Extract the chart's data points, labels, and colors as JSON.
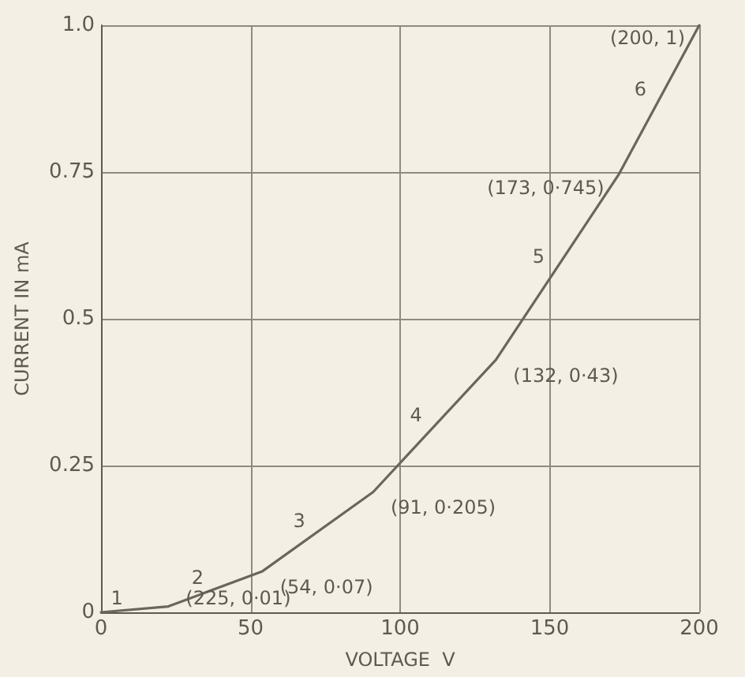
{
  "chart_data": {
    "type": "line",
    "xlabel": "VOLTAGE  V",
    "ylabel": "CURRENT IN mA",
    "x": [
      0,
      22.5,
      54,
      91,
      132,
      173,
      200
    ],
    "series": [
      {
        "color": "#6b665c",
        "values": [
          0,
          0.01,
          0.07,
          0.205,
          0.43,
          0.745,
          1
        ]
      }
    ],
    "xlim": [
      0,
      200
    ],
    "xticks": [
      0,
      50,
      100,
      150,
      200
    ],
    "ylim": [
      0,
      1
    ],
    "yticks": [
      0,
      0.25,
      0.5,
      0.75,
      {
        "value": 1,
        "label": "1.0"
      }
    ],
    "grid": true,
    "marker": "none",
    "line_style": "solid",
    "annotations": [
      {
        "text": "(225, 0·01)",
        "x": 22.5,
        "y": 0.01
      },
      {
        "text": "(54, 0·07)",
        "x": 54,
        "y": 0.07
      },
      {
        "text": "(91, 0·205)",
        "x": 91,
        "y": 0.205
      },
      {
        "text": "(132, 0·43)",
        "x": 132,
        "y": 0.43
      },
      {
        "text": "(173, 0·745)",
        "x": 173,
        "y": 0.745
      },
      {
        "text": "(200, 1)",
        "x": 200,
        "y": 1
      },
      {
        "text": "1",
        "x": 11,
        "y": 0.005
      },
      {
        "text": "2",
        "x": 38,
        "y": 0.04
      },
      {
        "text": "3",
        "x": 72,
        "y": 0.137
      },
      {
        "text": "4",
        "x": 111,
        "y": 0.317
      },
      {
        "text": "5",
        "x": 152,
        "y": 0.587
      },
      {
        "text": "6",
        "x": 186,
        "y": 0.872
      }
    ]
  }
}
